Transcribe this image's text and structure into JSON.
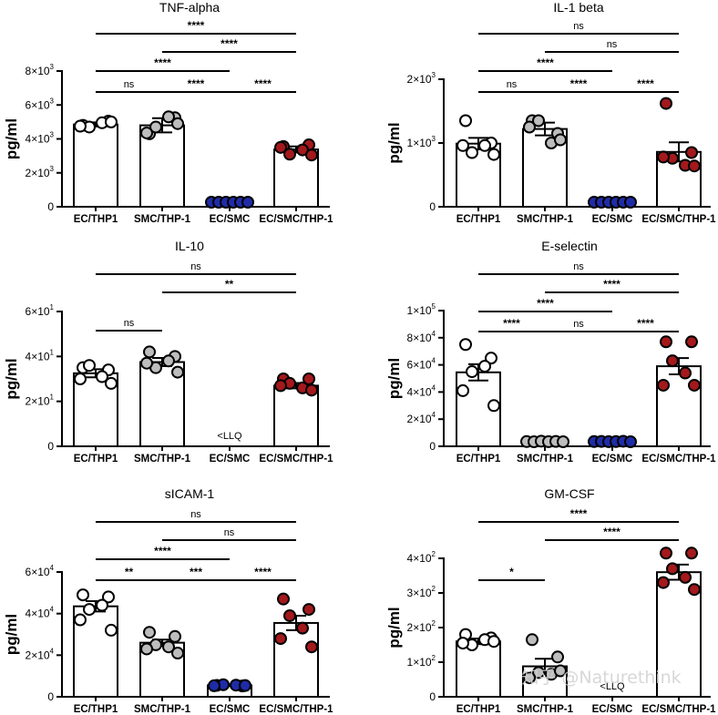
{
  "watermark": "知乎 @Naturethink",
  "colors": {
    "EC/THP1": "#ffffff",
    "SMC/THP-1": "#bdbdbd",
    "EC/SMC": "#1f2ca8",
    "EC/SMC/THP-1": "#a3191c"
  },
  "chart_data": [
    {
      "type": "bar",
      "title": "TNF-alpha",
      "ylabel": "pg/ml",
      "categories": [
        "EC/THP1",
        "SMC/THP-1",
        "EC/SMC",
        "EC/SMC/THP-1"
      ],
      "ylim": [
        0,
        8000
      ],
      "yticks": [
        0,
        2000,
        4000,
        6000,
        8000
      ],
      "yticklabels": [
        [
          "0",
          ""
        ],
        [
          "2×10",
          "3"
        ],
        [
          "4×10",
          "3"
        ],
        [
          "6×10",
          "3"
        ],
        [
          "8×10",
          "3"
        ]
      ],
      "values": [
        4850,
        4800,
        50,
        3380
      ],
      "sem": [
        120,
        420,
        20,
        180
      ],
      "points": [
        [
          4800,
          5050,
          4700,
          4950,
          4750,
          5000
        ],
        [
          4300,
          5250,
          4700,
          5300,
          4350,
          4900
        ],
        [
          50,
          40,
          60,
          50,
          45,
          55
        ],
        [
          3550,
          3650,
          3100,
          3350,
          3500,
          3050
        ]
      ],
      "comparisons": [
        {
          "from": 0,
          "to": 3,
          "label": "****"
        },
        {
          "from": 1,
          "to": 3,
          "label": "****"
        },
        {
          "from": 0,
          "to": 2,
          "label": "****"
        },
        {
          "from": 0,
          "to": 1,
          "label": "ns"
        },
        {
          "from": 1,
          "to": 2,
          "label": "****"
        },
        {
          "from": 2,
          "to": 3,
          "label": "****"
        }
      ],
      "note": null
    },
    {
      "type": "bar",
      "title": "IL-1 beta",
      "ylabel": "pg/ml",
      "categories": [
        "EC/THP1",
        "SMC/THP-1",
        "EC/SMC",
        "EC/SMC/THP-1"
      ],
      "ylim": [
        0,
        2000
      ],
      "yticks": [
        0,
        1000,
        2000
      ],
      "yticklabels": [
        [
          "0",
          ""
        ],
        [
          "1×10",
          "3"
        ],
        [
          "2×10",
          "3"
        ]
      ],
      "values": [
        990,
        1220,
        40,
        860
      ],
      "sem": [
        90,
        100,
        10,
        150
      ],
      "points": [
        [
          1350,
          1000,
          850,
          960,
          960,
          820
        ],
        [
          1350,
          1150,
          1350,
          1000,
          1250,
          1050
        ],
        [
          40,
          35,
          45,
          40,
          38,
          42
        ],
        [
          1620,
          850,
          760,
          650,
          780,
          640
        ]
      ],
      "comparisons": [
        {
          "from": 0,
          "to": 3,
          "label": "ns"
        },
        {
          "from": 1,
          "to": 3,
          "label": "ns"
        },
        {
          "from": 0,
          "to": 2,
          "label": "****"
        },
        {
          "from": 0,
          "to": 1,
          "label": "ns"
        },
        {
          "from": 1,
          "to": 2,
          "label": "****"
        },
        {
          "from": 2,
          "to": 3,
          "label": "****"
        }
      ],
      "note": null
    },
    {
      "type": "bar",
      "title": "IL-10",
      "ylabel": "pg/ml",
      "categories": [
        "EC/THP1",
        "SMC/THP-1",
        "EC/SMC",
        "EC/SMC/THP-1"
      ],
      "ylim": [
        0,
        60
      ],
      "yticks": [
        0,
        20,
        40,
        60
      ],
      "yticklabels": [
        [
          "0",
          ""
        ],
        [
          "2×10",
          "1"
        ],
        [
          "4×10",
          "1"
        ],
        [
          "6×10",
          "1"
        ]
      ],
      "values": [
        32.5,
        37.5,
        null,
        27
      ],
      "sem": [
        1.8,
        1.8,
        null,
        1.2
      ],
      "points": [
        [
          35,
          34,
          36,
          31,
          30,
          28
        ],
        [
          42,
          40,
          35,
          38,
          37,
          33
        ],
        [],
        [
          30,
          30,
          28,
          26,
          27,
          25
        ]
      ],
      "comparisons": [
        {
          "from": 0,
          "to": 3,
          "label": "ns"
        },
        {
          "from": 1,
          "to": 3,
          "label": "**"
        },
        {
          "from": 0,
          "to": 1,
          "label": "ns"
        }
      ],
      "note": {
        "category": 2,
        "text": "<LLQ"
      }
    },
    {
      "type": "bar",
      "title": "E-selectin",
      "ylabel": "pg/ml",
      "categories": [
        "EC/THP1",
        "SMC/THP-1",
        "EC/SMC",
        "EC/SMC/THP-1"
      ],
      "ylim": [
        0,
        100000
      ],
      "yticks": [
        0,
        20000,
        40000,
        60000,
        80000,
        100000
      ],
      "yticklabels": [
        [
          "0",
          ""
        ],
        [
          "2×10",
          "4"
        ],
        [
          "4×10",
          "4"
        ],
        [
          "6×10",
          "4"
        ],
        [
          "8×10",
          "4"
        ],
        [
          "1×10",
          "5"
        ]
      ],
      "values": [
        54500,
        3500,
        3500,
        59000
      ],
      "sem": [
        6000,
        400,
        300,
        6000
      ],
      "points": [
        [
          75000,
          65000,
          55000,
          59000,
          41000,
          30000
        ],
        [
          3500,
          3200,
          3800,
          3400,
          3600,
          3300
        ],
        [
          3500,
          3600,
          3400,
          3500,
          3700,
          3300
        ],
        [
          77000,
          77000,
          63000,
          54000,
          45000,
          45000
        ]
      ],
      "comparisons": [
        {
          "from": 0,
          "to": 3,
          "label": "ns"
        },
        {
          "from": 1,
          "to": 3,
          "label": "****"
        },
        {
          "from": 0,
          "to": 2,
          "label": "****"
        },
        {
          "from": 0,
          "to": 1,
          "label": "****"
        },
        {
          "from": 1,
          "to": 2,
          "label": "ns"
        },
        {
          "from": 2,
          "to": 3,
          "label": "****"
        }
      ],
      "note": null
    },
    {
      "type": "bar",
      "title": "sICAM-1",
      "ylabel": "pg/ml",
      "categories": [
        "EC/THP1",
        "SMC/THP-1",
        "EC/SMC",
        "EC/SMC/THP-1"
      ],
      "ylim": [
        0,
        60000
      ],
      "yticks": [
        0,
        20000,
        40000,
        60000
      ],
      "yticklabels": [
        [
          "0",
          ""
        ],
        [
          "2×10",
          "4"
        ],
        [
          "4×10",
          "4"
        ],
        [
          "6×10",
          "4"
        ]
      ],
      "values": [
        43500,
        26000,
        5500,
        35500
      ],
      "sem": [
        2500,
        1500,
        300,
        3500
      ],
      "points": [
        [
          49000,
          48000,
          42000,
          44000,
          37000,
          32000
        ],
        [
          31000,
          29000,
          25000,
          24000,
          23000,
          21000
        ],
        [
          5500,
          5200,
          5800,
          5600,
          5300,
          5400
        ],
        [
          47000,
          42000,
          39000,
          33000,
          28000,
          24000
        ]
      ],
      "comparisons": [
        {
          "from": 0,
          "to": 3,
          "label": "ns"
        },
        {
          "from": 1,
          "to": 3,
          "label": "ns"
        },
        {
          "from": 0,
          "to": 2,
          "label": "****"
        },
        {
          "from": 0,
          "to": 1,
          "label": "**"
        },
        {
          "from": 1,
          "to": 2,
          "label": "***"
        },
        {
          "from": 2,
          "to": 3,
          "label": "****"
        }
      ],
      "note": null
    },
    {
      "type": "bar",
      "title": "GM-CSF",
      "ylabel": "pg/ml",
      "categories": [
        "EC/THP1",
        "SMC/THP-1",
        "EC/SMC",
        "EC/SMC/THP-1"
      ],
      "ylim": [
        0,
        450
      ],
      "yticks": [
        0,
        100,
        200,
        300,
        400
      ],
      "yticklabels": [
        [
          "0",
          ""
        ],
        [
          "1×10",
          "2"
        ],
        [
          "2×10",
          "2"
        ],
        [
          "3×10",
          "2"
        ],
        [
          "4×10",
          "2"
        ]
      ],
      "values": [
        160,
        88,
        null,
        360
      ],
      "sem": [
        8,
        22,
        null,
        22
      ],
      "points": [
        [
          180,
          170,
          150,
          165,
          155,
          160
        ],
        [
          165,
          115,
          70,
          65,
          55,
          75
        ],
        [],
        [
          415,
          415,
          370,
          345,
          330,
          310
        ]
      ],
      "comparisons": [
        {
          "from": 0,
          "to": 3,
          "label": "****"
        },
        {
          "from": 1,
          "to": 3,
          "label": "****"
        },
        {
          "from": 0,
          "to": 1,
          "label": "*"
        }
      ],
      "note": {
        "category": 2,
        "text": "<LLQ"
      }
    }
  ]
}
